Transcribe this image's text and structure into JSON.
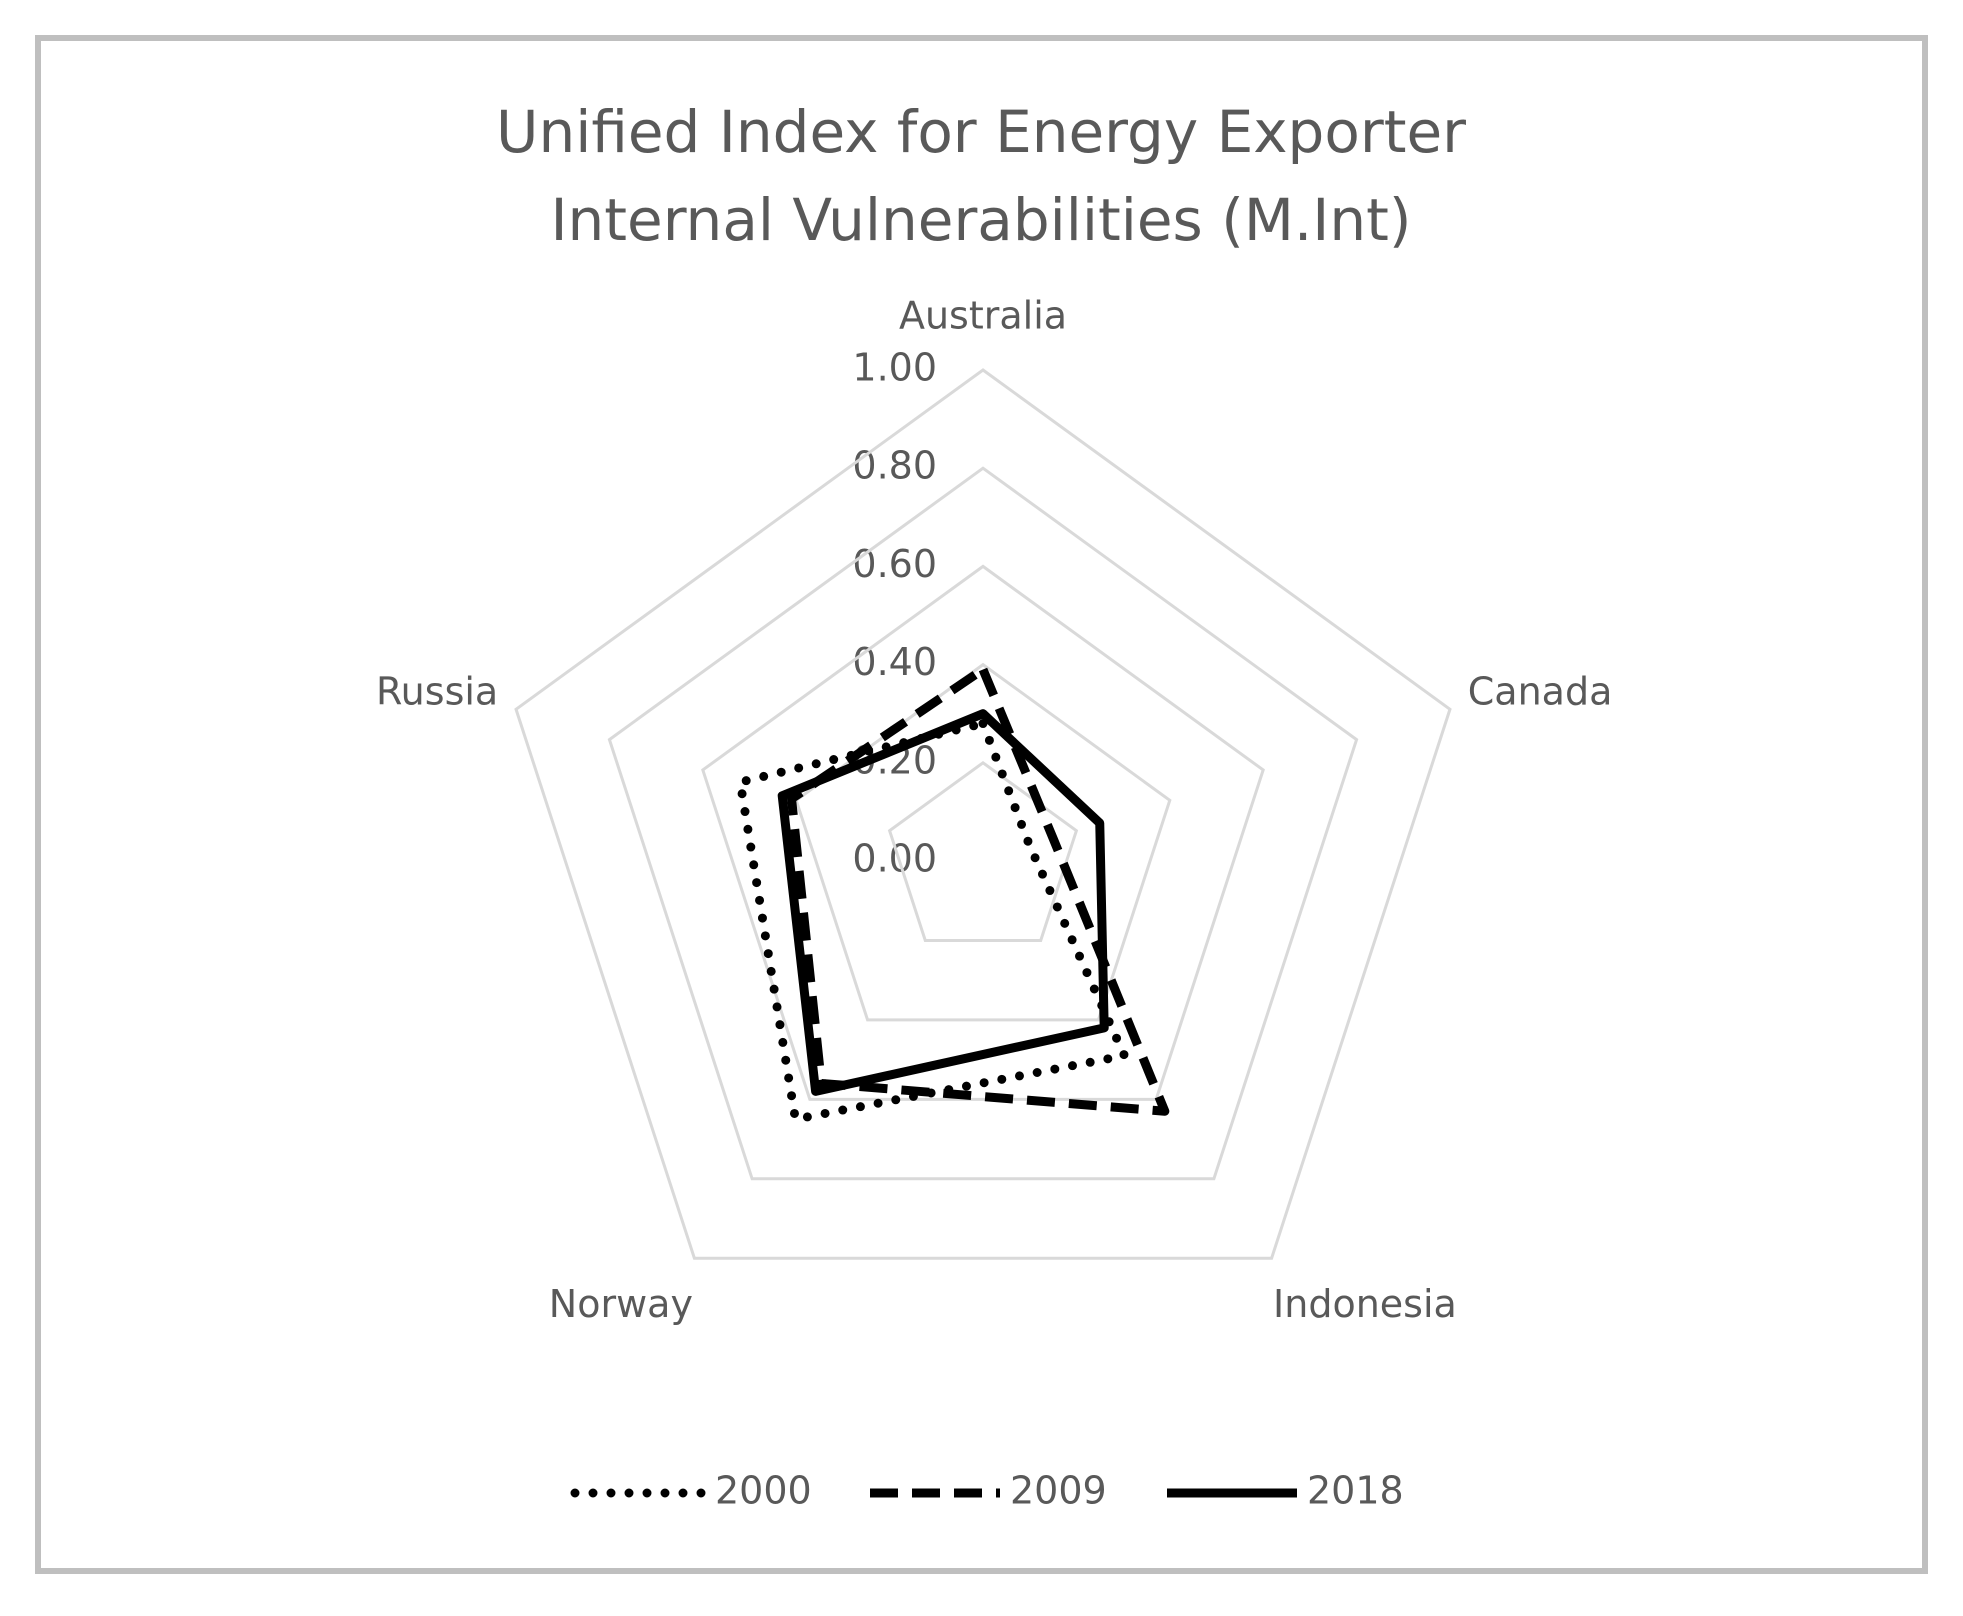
{
  "chart_data": {
    "type": "radar",
    "title": "Unified Index for Energy Exporter Internal Vulnerabilities (M.Int)",
    "categories": [
      "Australia",
      "Canada",
      "Indonesia",
      "Norway",
      "Russia"
    ],
    "series": [
      {
        "name": "2000",
        "color": "#000000",
        "dash": "dotted",
        "values": [
          0.28,
          0.1,
          0.49,
          0.65,
          0.52
        ]
      },
      {
        "name": "2009",
        "color": "#000000",
        "dash": "dashed",
        "values": [
          0.39,
          0.15,
          0.63,
          0.56,
          0.41
        ]
      },
      {
        "name": "2018",
        "color": "#000000",
        "dash": "solid",
        "values": [
          0.3,
          0.25,
          0.42,
          0.58,
          0.43
        ]
      }
    ],
    "ylim": [
      0,
      1
    ],
    "yticks": [
      {
        "value": 0,
        "label": "0.00"
      },
      {
        "value": 0.2,
        "label": "0.20"
      },
      {
        "value": 0.4,
        "label": "0.40"
      },
      {
        "value": 0.6,
        "label": "0.60"
      },
      {
        "value": 0.8,
        "label": "0.80"
      },
      {
        "value": 1,
        "label": "1.00"
      }
    ],
    "grid": true,
    "legend": "bottom"
  }
}
